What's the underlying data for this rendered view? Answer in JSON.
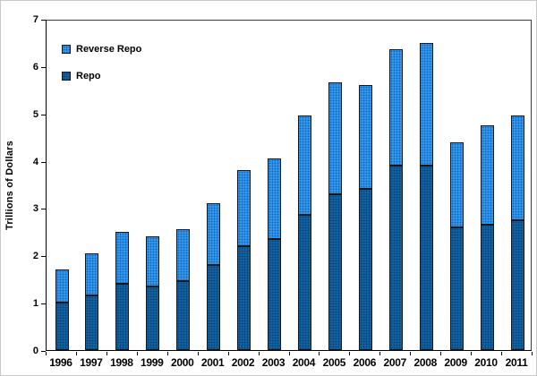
{
  "legend": [
    {
      "label": "Reverse Repo",
      "color": "#2f9af0"
    },
    {
      "label": "Repo",
      "color": "#11639e"
    }
  ],
  "chart_data": {
    "type": "bar",
    "stacked": true,
    "categories": [
      "1996",
      "1997",
      "1998",
      "1999",
      "2000",
      "2001",
      "2002",
      "2003",
      "2004",
      "2005",
      "2006",
      "2007",
      "2008",
      "2009",
      "2010",
      "2011"
    ],
    "series": [
      {
        "name": "Repo",
        "color": "#11639e",
        "values": [
          1.0,
          1.15,
          1.4,
          1.35,
          1.45,
          1.8,
          2.2,
          2.35,
          2.85,
          3.3,
          3.4,
          3.9,
          3.9,
          2.6,
          2.65,
          2.75
        ]
      },
      {
        "name": "Reverse Repo",
        "color": "#2f9af0",
        "values": [
          0.7,
          0.9,
          1.1,
          1.05,
          1.1,
          1.3,
          1.6,
          1.7,
          2.1,
          2.35,
          2.2,
          2.45,
          2.6,
          1.8,
          2.1,
          2.2
        ]
      }
    ],
    "totals": [
      1.7,
      2.05,
      2.5,
      2.4,
      2.55,
      3.1,
      3.8,
      4.05,
      4.95,
      5.65,
      5.6,
      6.35,
      6.5,
      4.4,
      4.75,
      4.95
    ],
    "xlabel": "",
    "ylabel": "Trillions of Dollars",
    "ylim": [
      0,
      7
    ],
    "yticks": [
      "0",
      "1",
      "2",
      "3",
      "4",
      "5",
      "6",
      "7"
    ],
    "grid": false,
    "legend_position": "inside-top-left"
  }
}
